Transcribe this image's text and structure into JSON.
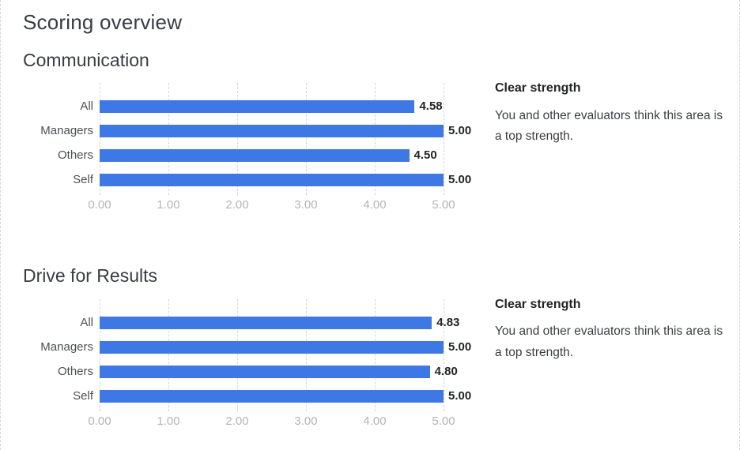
{
  "page": {
    "title": "Scoring overview"
  },
  "colors": {
    "bar": "#3e78e4",
    "gridline": "#d6d6d6",
    "axis_text": "#b4b4b4"
  },
  "chart_data": [
    {
      "type": "bar",
      "orientation": "horizontal",
      "title": "Communication",
      "categories": [
        "All",
        "Managers",
        "Others",
        "Self"
      ],
      "values": [
        4.58,
        5.0,
        4.5,
        5.0
      ],
      "value_labels": [
        "4.58",
        "5.00",
        "4.50",
        "5.00"
      ],
      "xlim": [
        0,
        5
      ],
      "xticks": [
        "0.00",
        "1.00",
        "2.00",
        "3.00",
        "4.00",
        "5.00"
      ],
      "grid": "vertical-dashed",
      "legend": "none",
      "note": {
        "title": "Clear strength",
        "body": "You and other evaluators think this area is a top strength."
      }
    },
    {
      "type": "bar",
      "orientation": "horizontal",
      "title": "Drive for Results",
      "categories": [
        "All",
        "Managers",
        "Others",
        "Self"
      ],
      "values": [
        4.83,
        5.0,
        4.8,
        5.0
      ],
      "value_labels": [
        "4.83",
        "5.00",
        "4.80",
        "5.00"
      ],
      "xlim": [
        0,
        5
      ],
      "xticks": [
        "0.00",
        "1.00",
        "2.00",
        "3.00",
        "4.00",
        "5.00"
      ],
      "grid": "vertical-dashed",
      "legend": "none",
      "note": {
        "title": "Clear strength",
        "body": "You and other evaluators think this area is a top strength."
      }
    }
  ]
}
